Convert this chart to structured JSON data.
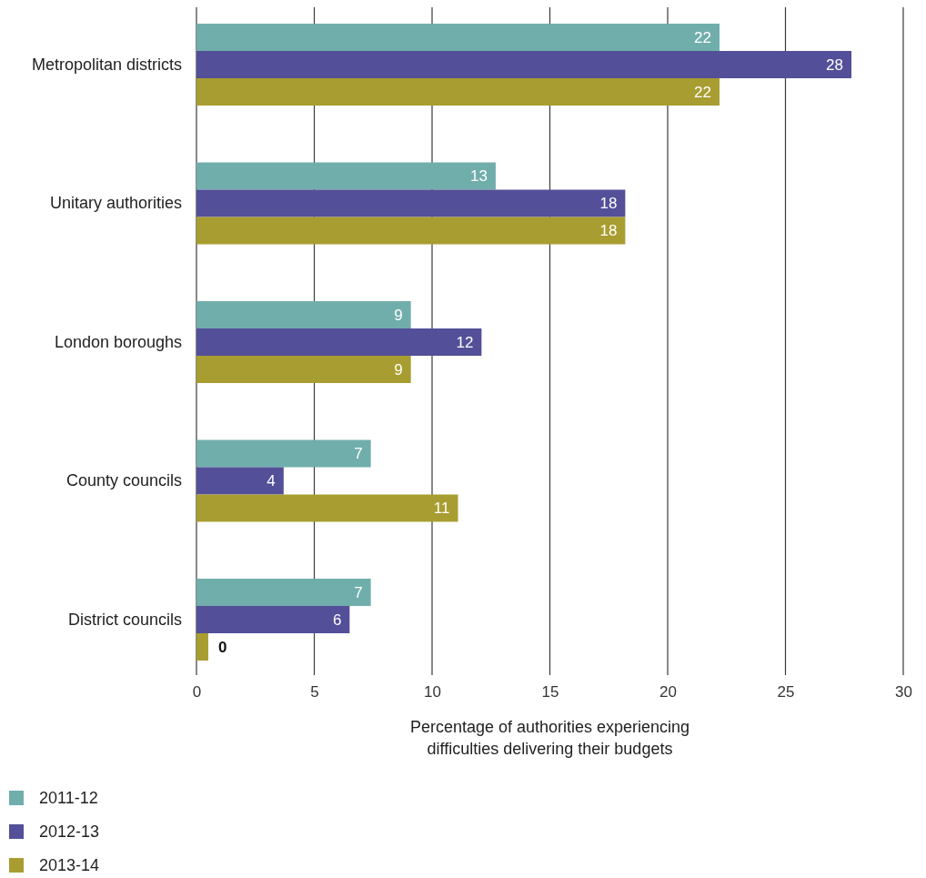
{
  "chart_data": {
    "type": "bar",
    "orientation": "horizontal",
    "categories": [
      "Metropolitan districts",
      "Unitary authorities",
      "London boroughs",
      "County councils",
      "District councils"
    ],
    "series": [
      {
        "name": "2011-12",
        "color": "#70aeac",
        "values": [
          22.2,
          12.7,
          9.1,
          7.4,
          7.4
        ],
        "value_labels": [
          "22",
          "13",
          "9",
          "7",
          "7"
        ]
      },
      {
        "name": "2012-13",
        "color": "#534f98",
        "values": [
          27.8,
          18.2,
          12.1,
          3.7,
          6.5
        ],
        "value_labels": [
          "28",
          "18",
          "12",
          "4",
          "6"
        ]
      },
      {
        "name": "2013-14",
        "color": "#a89d30",
        "values": [
          22.2,
          18.2,
          9.1,
          11.1,
          0.5
        ],
        "value_labels": [
          "22",
          "18",
          "9",
          "11",
          "0"
        ]
      }
    ],
    "xlim": [
      0,
      30
    ],
    "xticks": [
      0,
      5,
      10,
      15,
      20,
      25,
      30
    ],
    "xlabel": "Percentage of authorities experiencing difficulties delivering their budgets",
    "grid": "x",
    "legend": "bottom left"
  }
}
